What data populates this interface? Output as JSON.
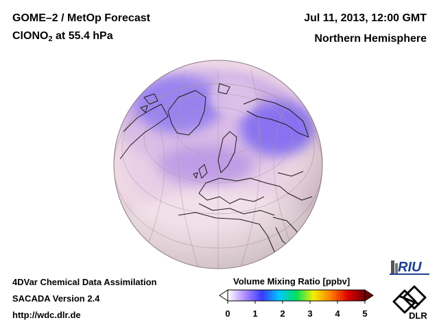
{
  "header": {
    "title_line1": "GOME–2 / MetOp Forecast",
    "species_main": "ClONO",
    "species_sub": "2",
    "species_level": " at 55.4 hPa",
    "date": "Jul 11, 2013, 12:00 GMT",
    "region": "Northern Hemisphere"
  },
  "footer": {
    "line1": "4DVar Chemical Data Assimilation",
    "line2": "SACADA Version 2.4",
    "line3": "http://wdc.dlr.de"
  },
  "colorbar": {
    "title": "Volume Mixing Ratio [ppbv]",
    "ticks": [
      "0",
      "1",
      "2",
      "3",
      "4",
      "5"
    ],
    "stops": [
      "#ffffff",
      "#b08cff",
      "#3a3aff",
      "#00c8ff",
      "#00e060",
      "#f0f000",
      "#ff8000",
      "#e00000",
      "#700000"
    ]
  },
  "logos": {
    "riu": "RIU",
    "dlr": "DLR"
  },
  "colors": {
    "globe_background": "#f2dde6",
    "high_vmr": "#7b6cf0",
    "mid_vmr": "#c49ae0"
  }
}
